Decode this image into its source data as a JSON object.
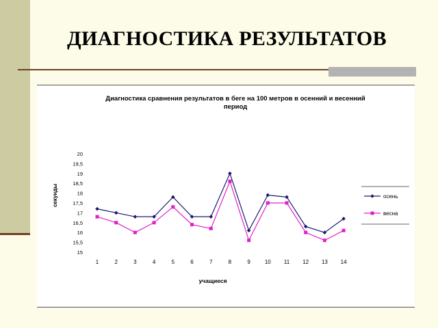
{
  "slide": {
    "title": "ДИАГНОСТИКА РЕЗУЛЬТАТОВ"
  },
  "colors": {
    "autumn": "#1a1a6e",
    "spring": "#e020c8",
    "background": "#fdfce9",
    "accent_bar": "#cdcba2"
  },
  "chart_data": {
    "type": "line",
    "title": "Диагностика сравнения результатов в беге на 100 метров в осенний и весенний период",
    "xlabel": "учащиеся",
    "ylabel": "секунды",
    "categories": [
      "1",
      "2",
      "3",
      "4",
      "5",
      "6",
      "7",
      "8",
      "9",
      "10",
      "11",
      "12",
      "13",
      "14"
    ],
    "ylim": [
      15,
      20
    ],
    "yticks": [
      "20",
      "19,5",
      "19",
      "18,5",
      "18",
      "17,5",
      "17",
      "16,5",
      "16",
      "15,5",
      "15"
    ],
    "legend_position": "right",
    "series": [
      {
        "name": "осень",
        "color": "#1a1a6e",
        "marker": "diamond",
        "values": [
          17.2,
          17.0,
          16.8,
          16.8,
          17.8,
          16.8,
          16.8,
          19.0,
          16.1,
          17.9,
          17.8,
          16.3,
          16.0,
          16.7
        ]
      },
      {
        "name": "весна",
        "color": "#e020c8",
        "marker": "square",
        "values": [
          16.8,
          16.5,
          16.0,
          16.5,
          17.3,
          16.4,
          16.2,
          18.6,
          15.6,
          17.5,
          17.5,
          16.0,
          15.6,
          16.1
        ]
      }
    ]
  }
}
